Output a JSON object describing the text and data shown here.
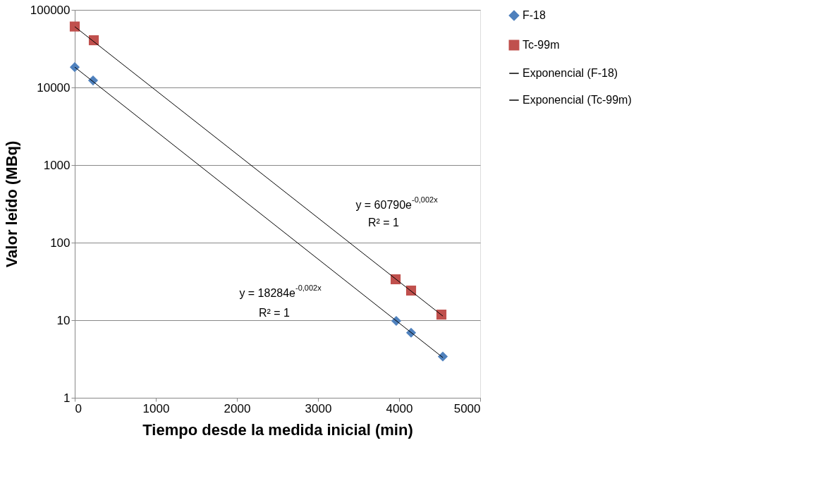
{
  "chart_data": {
    "type": "scatter",
    "xlabel": "Tiempo desde la medida inicial (min)",
    "ylabel": "Valor leído (MBq)",
    "log": "y",
    "xlim": [
      0,
      5000
    ],
    "xticks": [
      0,
      1000,
      2000,
      3000,
      4000,
      5000
    ],
    "ylim": [
      1,
      100000
    ],
    "yticks": [
      1,
      10,
      100,
      1000,
      10000,
      100000
    ],
    "grid": "y",
    "legend": "right",
    "series": [
      {
        "name": "F-18",
        "marker": "diamond",
        "color": "#4f81bd",
        "x": [
          0,
          226,
          3965,
          4148,
          4539
        ],
        "values": [
          18300,
          12300,
          9.8,
          6.9,
          3.4
        ]
      },
      {
        "name": "Tc-99m",
        "marker": "square",
        "color": "#c0504d",
        "x": [
          0,
          235,
          3957,
          4148,
          4522
        ],
        "values": [
          61000,
          40600,
          33.7,
          24.1,
          11.8
        ]
      },
      {
        "name": "Exponencial (F-18)",
        "type": "line",
        "color": "#000000",
        "x": [
          0,
          4540
        ],
        "values": [
          18284,
          3.3
        ]
      },
      {
        "name": "Exponencial (Tc-99m)",
        "type": "line",
        "color": "#000000",
        "x": [
          0,
          4540
        ],
        "values": [
          60790,
          11.3
        ]
      }
    ],
    "annotations": [
      "y = 60790e$^{-0,002x}$",
      "R² = 1",
      "y = 18284e$^{-0,002x}$",
      "R² = 1"
    ]
  }
}
